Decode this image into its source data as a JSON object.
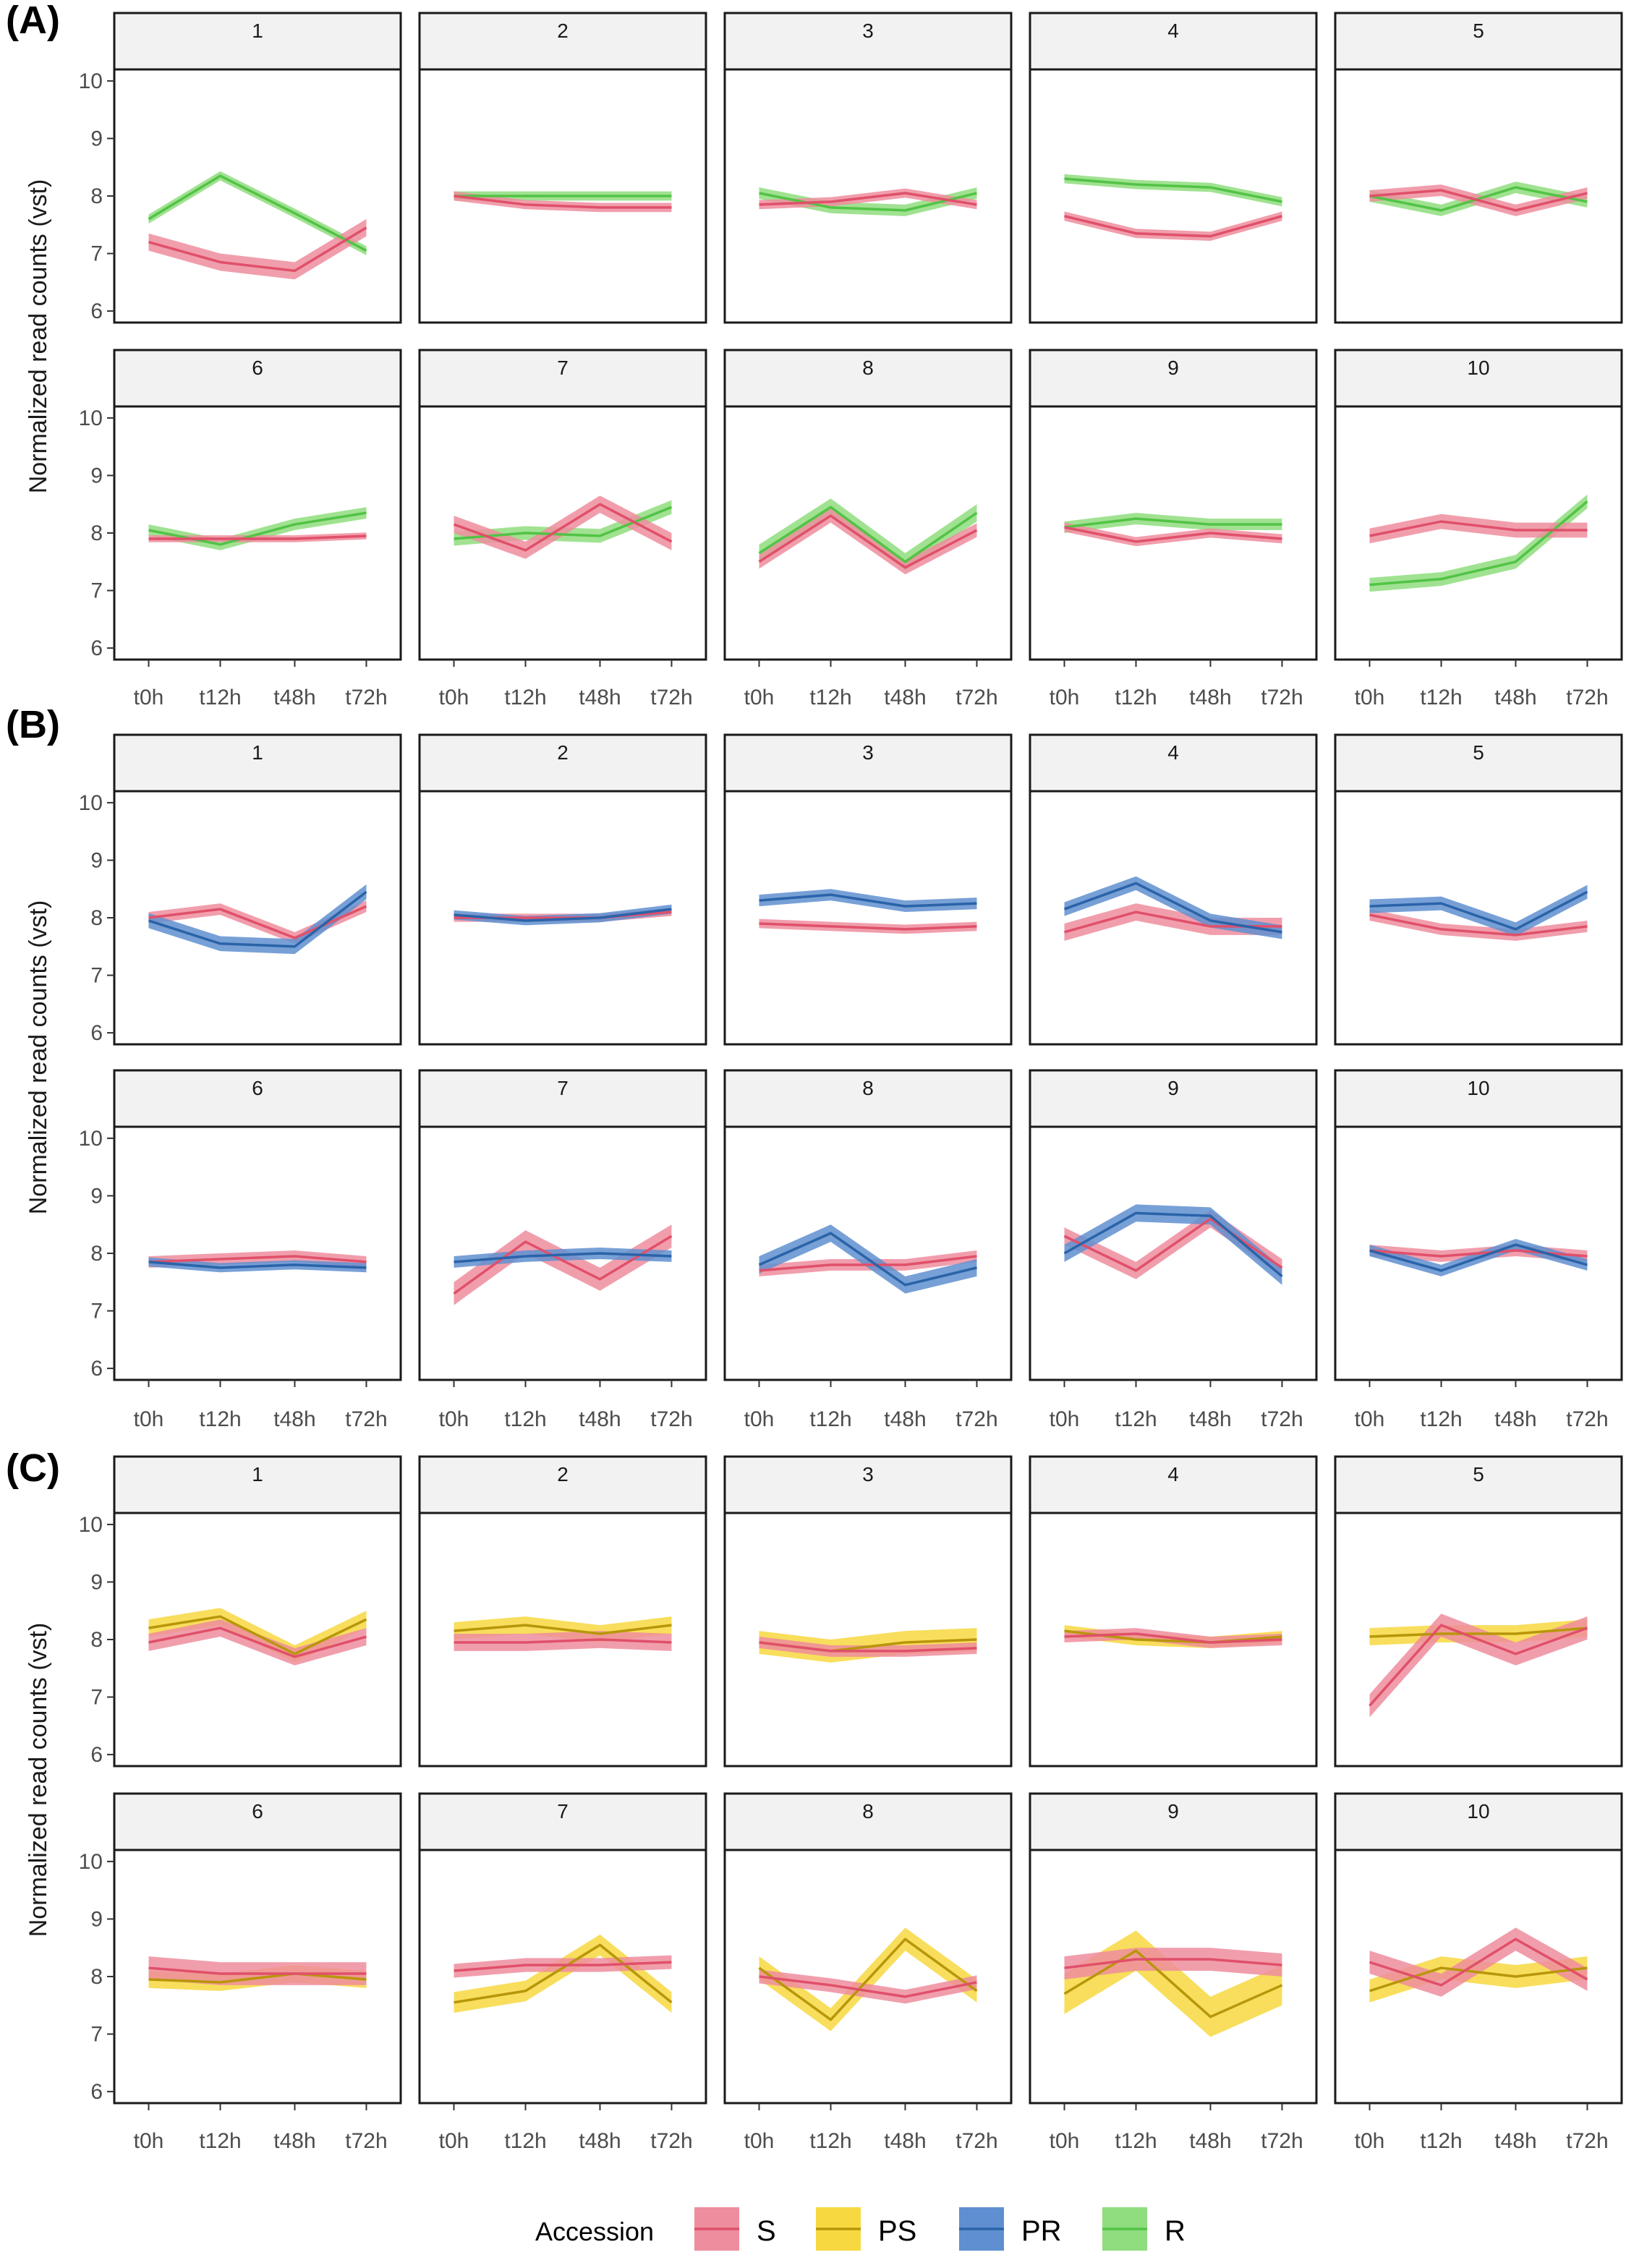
{
  "chart_data": {
    "type": "line",
    "time_points": [
      "t0h",
      "t12h",
      "t48h",
      "t72h"
    ],
    "ylabel": "Normalized read counts (vst)",
    "yticks": [
      6,
      7,
      8,
      9,
      10
    ],
    "ylim": [
      5.8,
      10.2
    ],
    "colors": {
      "S": {
        "line": "#E0506A",
        "ribbon": "#EE8D9E"
      },
      "PS": {
        "line": "#B8960A",
        "ribbon": "#F7D840"
      },
      "PR": {
        "line": "#2A63A8",
        "ribbon": "#5F8FD0"
      },
      "R": {
        "line": "#52C346",
        "ribbon": "#8FDD7E"
      }
    },
    "legend": {
      "title": "Accession",
      "items": [
        {
          "key": "S",
          "label": "S"
        },
        {
          "key": "PS",
          "label": "PS"
        },
        {
          "key": "PR",
          "label": "PR"
        },
        {
          "key": "R",
          "label": "R"
        }
      ]
    },
    "panels": [
      {
        "label": "(A)",
        "clusters": [
          {
            "id": "1",
            "series": [
              {
                "key": "R",
                "values": [
                  7.6,
                  8.35,
                  7.7,
                  7.05
                ],
                "se": 0.08
              },
              {
                "key": "S",
                "values": [
                  7.2,
                  6.85,
                  6.7,
                  7.45
                ],
                "se": 0.15
              }
            ]
          },
          {
            "id": "2",
            "series": [
              {
                "key": "R",
                "values": [
                  8.0,
                  8.0,
                  8.0,
                  8.0
                ],
                "se": 0.08
              },
              {
                "key": "S",
                "values": [
                  8.0,
                  7.85,
                  7.8,
                  7.8
                ],
                "se": 0.08
              }
            ]
          },
          {
            "id": "3",
            "series": [
              {
                "key": "R",
                "values": [
                  8.05,
                  7.8,
                  7.75,
                  8.05
                ],
                "se": 0.1
              },
              {
                "key": "S",
                "values": [
                  7.85,
                  7.9,
                  8.05,
                  7.85
                ],
                "se": 0.08
              }
            ]
          },
          {
            "id": "4",
            "series": [
              {
                "key": "R",
                "values": [
                  8.3,
                  8.2,
                  8.15,
                  7.9
                ],
                "se": 0.08
              },
              {
                "key": "S",
                "values": [
                  7.65,
                  7.35,
                  7.3,
                  7.65
                ],
                "se": 0.08
              }
            ]
          },
          {
            "id": "5",
            "series": [
              {
                "key": "R",
                "values": [
                  8.0,
                  7.75,
                  8.15,
                  7.9
                ],
                "se": 0.1
              },
              {
                "key": "S",
                "values": [
                  8.0,
                  8.1,
                  7.75,
                  8.05
                ],
                "se": 0.1
              }
            ]
          },
          {
            "id": "6",
            "series": [
              {
                "key": "R",
                "values": [
                  8.05,
                  7.8,
                  8.15,
                  8.35
                ],
                "se": 0.1
              },
              {
                "key": "S",
                "values": [
                  7.9,
                  7.9,
                  7.9,
                  7.95
                ],
                "se": 0.06
              }
            ]
          },
          {
            "id": "7",
            "series": [
              {
                "key": "R",
                "values": [
                  7.9,
                  8.0,
                  7.95,
                  8.45
                ],
                "se": 0.12
              },
              {
                "key": "S",
                "values": [
                  8.15,
                  7.7,
                  8.5,
                  7.85
                ],
                "se": 0.15
              }
            ]
          },
          {
            "id": "8",
            "series": [
              {
                "key": "R",
                "values": [
                  7.65,
                  8.45,
                  7.5,
                  8.35
                ],
                "se": 0.15
              },
              {
                "key": "S",
                "values": [
                  7.5,
                  8.3,
                  7.4,
                  8.05
                ],
                "se": 0.12
              }
            ]
          },
          {
            "id": "9",
            "series": [
              {
                "key": "R",
                "values": [
                  8.1,
                  8.25,
                  8.15,
                  8.15
                ],
                "se": 0.1
              },
              {
                "key": "S",
                "values": [
                  8.1,
                  7.85,
                  8.0,
                  7.9
                ],
                "se": 0.08
              }
            ]
          },
          {
            "id": "10",
            "series": [
              {
                "key": "R",
                "values": [
                  7.1,
                  7.2,
                  7.5,
                  8.55
                ],
                "se": 0.12
              },
              {
                "key": "S",
                "values": [
                  7.95,
                  8.2,
                  8.05,
                  8.05
                ],
                "se": 0.13
              }
            ]
          }
        ]
      },
      {
        "label": "(B)",
        "clusters": [
          {
            "id": "1",
            "series": [
              {
                "key": "S",
                "values": [
                  8.0,
                  8.15,
                  7.65,
                  8.2
                ],
                "se": 0.1
              },
              {
                "key": "PR",
                "values": [
                  7.95,
                  7.55,
                  7.5,
                  8.45
                ],
                "se": 0.13
              }
            ]
          },
          {
            "id": "2",
            "series": [
              {
                "key": "S",
                "values": [
                  8.0,
                  8.0,
                  8.0,
                  8.1
                ],
                "se": 0.07
              },
              {
                "key": "PR",
                "values": [
                  8.05,
                  7.95,
                  8.0,
                  8.15
                ],
                "se": 0.08
              }
            ]
          },
          {
            "id": "3",
            "series": [
              {
                "key": "S",
                "values": [
                  7.9,
                  7.85,
                  7.8,
                  7.85
                ],
                "se": 0.08
              },
              {
                "key": "PR",
                "values": [
                  8.3,
                  8.4,
                  8.2,
                  8.25
                ],
                "se": 0.1
              }
            ]
          },
          {
            "id": "4",
            "series": [
              {
                "key": "S",
                "values": [
                  7.75,
                  8.1,
                  7.85,
                  7.85
                ],
                "se": 0.15
              },
              {
                "key": "PR",
                "values": [
                  8.15,
                  8.6,
                  7.95,
                  7.75
                ],
                "se": 0.12
              }
            ]
          },
          {
            "id": "5",
            "series": [
              {
                "key": "S",
                "values": [
                  8.05,
                  7.8,
                  7.7,
                  7.85
                ],
                "se": 0.1
              },
              {
                "key": "PR",
                "values": [
                  8.2,
                  8.25,
                  7.8,
                  8.45
                ],
                "se": 0.12
              }
            ]
          },
          {
            "id": "6",
            "series": [
              {
                "key": "S",
                "values": [
                  7.85,
                  7.9,
                  7.95,
                  7.85
                ],
                "se": 0.1
              },
              {
                "key": "PR",
                "values": [
                  7.85,
                  7.75,
                  7.8,
                  7.75
                ],
                "se": 0.08
              }
            ]
          },
          {
            "id": "7",
            "series": [
              {
                "key": "S",
                "values": [
                  7.3,
                  8.2,
                  7.55,
                  8.3
                ],
                "se": 0.2
              },
              {
                "key": "PR",
                "values": [
                  7.85,
                  7.95,
                  8.0,
                  7.95
                ],
                "se": 0.1
              }
            ]
          },
          {
            "id": "8",
            "series": [
              {
                "key": "S",
                "values": [
                  7.7,
                  7.8,
                  7.8,
                  7.95
                ],
                "se": 0.1
              },
              {
                "key": "PR",
                "values": [
                  7.8,
                  8.35,
                  7.45,
                  7.75
                ],
                "se": 0.15
              }
            ]
          },
          {
            "id": "9",
            "series": [
              {
                "key": "S",
                "values": [
                  8.3,
                  7.7,
                  8.6,
                  7.75
                ],
                "se": 0.15
              },
              {
                "key": "PR",
                "values": [
                  8.0,
                  8.7,
                  8.65,
                  7.6
                ],
                "se": 0.15
              }
            ]
          },
          {
            "id": "10",
            "series": [
              {
                "key": "S",
                "values": [
                  8.05,
                  7.95,
                  8.05,
                  7.95
                ],
                "se": 0.1
              },
              {
                "key": "PR",
                "values": [
                  8.05,
                  7.7,
                  8.15,
                  7.8
                ],
                "se": 0.1
              }
            ]
          }
        ]
      },
      {
        "label": "(C)",
        "clusters": [
          {
            "id": "1",
            "series": [
              {
                "key": "PS",
                "values": [
                  8.2,
                  8.4,
                  7.75,
                  8.35
                ],
                "se": 0.15
              },
              {
                "key": "S",
                "values": [
                  7.95,
                  8.2,
                  7.7,
                  8.05
                ],
                "se": 0.15
              }
            ]
          },
          {
            "id": "2",
            "series": [
              {
                "key": "PS",
                "values": [
                  8.15,
                  8.25,
                  8.1,
                  8.25
                ],
                "se": 0.15
              },
              {
                "key": "S",
                "values": [
                  7.95,
                  7.95,
                  8.0,
                  7.95
                ],
                "se": 0.15
              }
            ]
          },
          {
            "id": "3",
            "series": [
              {
                "key": "PS",
                "values": [
                  7.95,
                  7.8,
                  7.95,
                  8.0
                ],
                "se": 0.2
              },
              {
                "key": "S",
                "values": [
                  7.95,
                  7.8,
                  7.8,
                  7.85
                ],
                "se": 0.1
              }
            ]
          },
          {
            "id": "4",
            "series": [
              {
                "key": "PS",
                "values": [
                  8.15,
                  8.0,
                  7.95,
                  8.05
                ],
                "se": 0.1
              },
              {
                "key": "S",
                "values": [
                  8.05,
                  8.1,
                  7.95,
                  8.0
                ],
                "se": 0.1
              }
            ]
          },
          {
            "id": "5",
            "series": [
              {
                "key": "PS",
                "values": [
                  8.05,
                  8.1,
                  8.1,
                  8.2
                ],
                "se": 0.15
              },
              {
                "key": "S",
                "values": [
                  6.85,
                  8.25,
                  7.75,
                  8.2
                ],
                "se": 0.2
              }
            ]
          },
          {
            "id": "6",
            "series": [
              {
                "key": "PS",
                "values": [
                  7.95,
                  7.9,
                  8.05,
                  7.95
                ],
                "se": 0.15
              },
              {
                "key": "S",
                "values": [
                  8.15,
                  8.05,
                  8.05,
                  8.05
                ],
                "se": 0.2
              }
            ]
          },
          {
            "id": "7",
            "series": [
              {
                "key": "PS",
                "values": [
                  7.55,
                  7.75,
                  8.55,
                  7.55
                ],
                "se": 0.18
              },
              {
                "key": "S",
                "values": [
                  8.1,
                  8.2,
                  8.2,
                  8.25
                ],
                "se": 0.12
              }
            ]
          },
          {
            "id": "8",
            "series": [
              {
                "key": "PS",
                "values": [
                  8.15,
                  7.25,
                  8.65,
                  7.75
                ],
                "se": 0.2
              },
              {
                "key": "S",
                "values": [
                  8.0,
                  7.85,
                  7.65,
                  7.9
                ],
                "se": 0.12
              }
            ]
          },
          {
            "id": "9",
            "series": [
              {
                "key": "PS",
                "values": [
                  7.7,
                  8.45,
                  7.3,
                  7.85
                ],
                "se": 0.35
              },
              {
                "key": "S",
                "values": [
                  8.15,
                  8.3,
                  8.3,
                  8.2
                ],
                "se": 0.2
              }
            ]
          },
          {
            "id": "10",
            "series": [
              {
                "key": "PS",
                "values": [
                  7.75,
                  8.15,
                  8.0,
                  8.15
                ],
                "se": 0.2
              },
              {
                "key": "S",
                "values": [
                  8.25,
                  7.85,
                  8.65,
                  7.95
                ],
                "se": 0.2
              }
            ]
          }
        ]
      }
    ]
  }
}
